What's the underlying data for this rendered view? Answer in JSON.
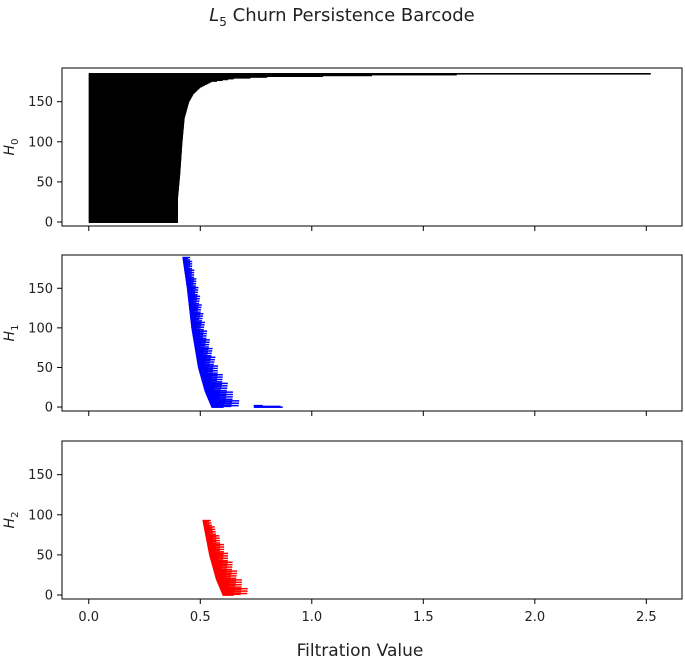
{
  "chart_data": {
    "type": "barcode",
    "title_prefix": "L",
    "title_sub": "5",
    "title_rest": " Churn Persistence Barcode",
    "xlabel": "Filtration Value",
    "xlim": [
      -0.12,
      2.66
    ],
    "xticks": [
      0.0,
      0.5,
      1.0,
      1.5,
      2.0,
      2.5
    ],
    "xtick_labels": [
      "0.0",
      "0.5",
      "1.0",
      "1.5",
      "2.0",
      "2.5"
    ],
    "panels": [
      {
        "id": "h0",
        "ylabel_main": "H",
        "ylabel_sub": "0",
        "color": "#000000",
        "ylim": [
          -5,
          192
        ],
        "yticks": [
          0,
          50,
          100,
          150
        ],
        "ytick_labels": [
          "0",
          "50",
          "100",
          "150"
        ],
        "n_bars": 186,
        "death_curve": [
          [
            0,
            0.4
          ],
          [
            30,
            0.4
          ],
          [
            60,
            0.41
          ],
          [
            100,
            0.42
          ],
          [
            130,
            0.43
          ],
          [
            150,
            0.45
          ],
          [
            160,
            0.47
          ],
          [
            168,
            0.5
          ],
          [
            175,
            0.55
          ],
          [
            179,
            0.65
          ],
          [
            181,
            0.8
          ],
          [
            182,
            1.05
          ],
          [
            183,
            1.27
          ],
          [
            184,
            1.65
          ],
          [
            185,
            2.52
          ]
        ]
      },
      {
        "id": "h1",
        "ylabel_main": "H",
        "ylabel_sub": "1",
        "color": "#0000ff",
        "ylim": [
          -5,
          192
        ],
        "yticks": [
          0,
          50,
          100,
          150
        ],
        "ytick_labels": [
          "0",
          "50",
          "100",
          "150"
        ],
        "n_bars": 190,
        "start_curve": [
          [
            0,
            0.55
          ],
          [
            20,
            0.52
          ],
          [
            50,
            0.49
          ],
          [
            100,
            0.46
          ],
          [
            150,
            0.44
          ],
          [
            189,
            0.42
          ]
        ],
        "len_curve": [
          [
            0,
            0.11
          ],
          [
            50,
            0.07
          ],
          [
            100,
            0.05
          ],
          [
            150,
            0.04
          ],
          [
            189,
            0.03
          ]
        ],
        "extras": [
          [
            0,
            0.74,
            0.87
          ],
          [
            1,
            0.74,
            0.86
          ],
          [
            2,
            0.74,
            0.78
          ]
        ]
      },
      {
        "id": "h2",
        "ylabel_main": "H",
        "ylabel_sub": "2",
        "color": "#ff0000",
        "ylim": [
          -5,
          192
        ],
        "yticks": [
          0,
          50,
          100,
          150
        ],
        "ytick_labels": [
          "0",
          "50",
          "100",
          "150"
        ],
        "n_bars": 94,
        "start_curve": [
          [
            0,
            0.6
          ],
          [
            20,
            0.57
          ],
          [
            50,
            0.54
          ],
          [
            93,
            0.51
          ]
        ],
        "len_curve": [
          [
            0,
            0.1
          ],
          [
            30,
            0.08
          ],
          [
            60,
            0.06
          ],
          [
            93,
            0.03
          ]
        ]
      }
    ]
  }
}
